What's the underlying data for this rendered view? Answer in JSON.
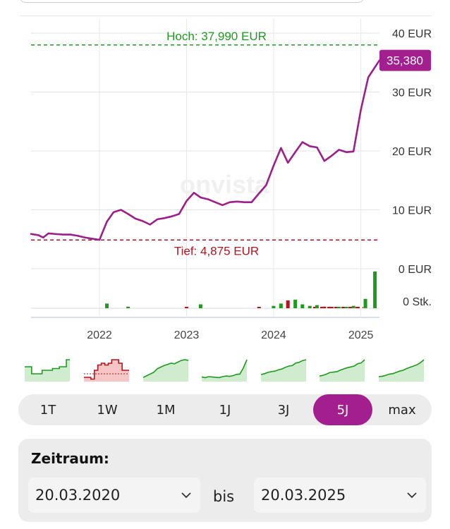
{
  "chart_data": {
    "type": "line",
    "currency": "EUR",
    "y_ticks": [
      "40 EUR",
      "30 EUR",
      "20 EUR",
      "10 EUR",
      "0 EUR"
    ],
    "ylim": [
      0,
      40
    ],
    "x_ticks": [
      "2022",
      "2023",
      "2024",
      "2025"
    ],
    "x_range": [
      "2021-03-20",
      "2025-03-20"
    ],
    "high": {
      "label": "Hoch: 37,990 EUR",
      "value": 37.99
    },
    "low": {
      "label": "Tief: 4,875 EUR",
      "value": 4.875
    },
    "last_value_label": "35,380",
    "series": [
      {
        "name": "",
        "color": "#9c1f8a",
        "points": [
          [
            "2021-03-20",
            5.9
          ],
          [
            "2021-04-20",
            5.7
          ],
          [
            "2021-05-10",
            5.3
          ],
          [
            "2021-06-01",
            6.0
          ],
          [
            "2021-07-01",
            5.9
          ],
          [
            "2021-08-01",
            5.8
          ],
          [
            "2021-09-01",
            5.8
          ],
          [
            "2021-10-01",
            5.6
          ],
          [
            "2021-11-01",
            5.3
          ],
          [
            "2021-12-01",
            5.1
          ],
          [
            "2022-01-01",
            4.9
          ],
          [
            "2022-02-01",
            8.0
          ],
          [
            "2022-03-01",
            9.6
          ],
          [
            "2022-04-01",
            10.0
          ],
          [
            "2022-05-01",
            9.3
          ],
          [
            "2022-06-01",
            8.5
          ],
          [
            "2022-07-01",
            8.1
          ],
          [
            "2022-08-01",
            7.5
          ],
          [
            "2022-09-01",
            8.4
          ],
          [
            "2022-10-01",
            8.6
          ],
          [
            "2022-11-01",
            8.9
          ],
          [
            "2022-12-01",
            9.3
          ],
          [
            "2023-01-01",
            11.5
          ],
          [
            "2023-02-01",
            12.9
          ],
          [
            "2023-03-01",
            12.1
          ],
          [
            "2023-04-01",
            11.8
          ],
          [
            "2023-05-01",
            11.3
          ],
          [
            "2023-06-01",
            10.8
          ],
          [
            "2023-07-01",
            11.3
          ],
          [
            "2023-08-01",
            11.4
          ],
          [
            "2023-09-01",
            11.3
          ],
          [
            "2023-10-01",
            11.3
          ],
          [
            "2023-11-01",
            12.8
          ],
          [
            "2023-12-01",
            14.2
          ],
          [
            "2024-01-01",
            17.5
          ],
          [
            "2024-02-01",
            20.5
          ],
          [
            "2024-03-01",
            18.0
          ],
          [
            "2024-04-01",
            19.8
          ],
          [
            "2024-05-01",
            21.5
          ],
          [
            "2024-06-01",
            20.8
          ],
          [
            "2024-07-01",
            20.6
          ],
          [
            "2024-08-01",
            18.3
          ],
          [
            "2024-09-01",
            19.2
          ],
          [
            "2024-10-01",
            20.2
          ],
          [
            "2024-11-01",
            19.8
          ],
          [
            "2024-12-01",
            19.9
          ],
          [
            "2025-01-01",
            27.0
          ],
          [
            "2025-02-01",
            32.5
          ],
          [
            "2025-03-20",
            35.38
          ]
        ]
      }
    ],
    "volume": {
      "axis_label": "0 Stk.",
      "bars": [
        {
          "date": "2022-02-01",
          "value": 6,
          "direction": "up"
        },
        {
          "date": "2022-05-01",
          "value": 2,
          "direction": "up"
        },
        {
          "date": "2023-01-01",
          "value": 1,
          "direction": "down"
        },
        {
          "date": "2023-03-01",
          "value": 5,
          "direction": "up"
        },
        {
          "date": "2023-11-01",
          "value": 1,
          "direction": "down"
        },
        {
          "date": "2024-01-01",
          "value": 3,
          "direction": "up"
        },
        {
          "date": "2024-02-01",
          "value": 6,
          "direction": "up"
        },
        {
          "date": "2024-03-01",
          "value": 10,
          "direction": "down"
        },
        {
          "date": "2024-04-01",
          "value": 11,
          "direction": "up"
        },
        {
          "date": "2024-05-01",
          "value": 5,
          "direction": "up"
        },
        {
          "date": "2024-06-01",
          "value": 3,
          "direction": "up"
        },
        {
          "date": "2024-07-01",
          "value": 4,
          "direction": "up"
        },
        {
          "date": "2024-08-01",
          "value": 2,
          "direction": "down"
        },
        {
          "date": "2024-09-01",
          "value": 1,
          "direction": "down"
        },
        {
          "date": "2024-10-01",
          "value": 1,
          "direction": "up"
        },
        {
          "date": "2024-11-01",
          "value": 1,
          "direction": "up"
        },
        {
          "date": "2024-12-01",
          "value": 3,
          "direction": "up"
        },
        {
          "date": "2025-01-20",
          "value": 12,
          "direction": "up"
        },
        {
          "date": "2025-03-01",
          "value": 47,
          "direction": "up"
        }
      ],
      "up_color": "#1f9a1f",
      "down_color": "#b3141e"
    }
  },
  "colors": {
    "accent": "#a31e8e",
    "high": "#1f9a1f",
    "low": "#b3141e"
  },
  "thumbnails": [
    {
      "period": "1T",
      "trend": "up",
      "values": [
        4,
        4,
        2,
        2,
        2,
        3,
        3,
        3,
        3.5,
        3.5,
        4,
        4,
        6,
        6
      ]
    },
    {
      "period": "1W",
      "trend": "down",
      "values": [
        1,
        1,
        0.5,
        3,
        4.5,
        5,
        4.5,
        5,
        6,
        6,
        5,
        3,
        3,
        3
      ]
    },
    {
      "period": "1M",
      "trend": "up",
      "values": [
        1,
        1.5,
        2,
        2.5,
        3.5,
        4,
        4.5,
        4.8,
        5.2,
        5,
        5.5,
        6,
        6.2,
        6
      ]
    },
    {
      "period": "1J",
      "trend": "up",
      "values": [
        1.2,
        1,
        1.3,
        1.2,
        1.1,
        1,
        1.3,
        1.5,
        1.4,
        1.6,
        2,
        2.1,
        4,
        6.5
      ]
    },
    {
      "period": "3J",
      "trend": "up",
      "values": [
        1.5,
        1.7,
        2,
        2.2,
        2.3,
        2.6,
        2.8,
        3.2,
        3.5,
        3.6,
        4.2,
        4.4,
        4.8,
        5
      ]
    },
    {
      "period": "5J",
      "trend": "up",
      "values": [
        1.2,
        1.4,
        1.7,
        2.1,
        2.2,
        2.3,
        2.7,
        3,
        3.3,
        3.5,
        3.7,
        4.3,
        4.5,
        5.3
      ]
    },
    {
      "period": "max",
      "trend": "up",
      "values": [
        1,
        1.1,
        1.3,
        1.6,
        1.7,
        2,
        2.3,
        2.5,
        2.9,
        3.2,
        3.5,
        3.8,
        4.3,
        5
      ]
    }
  ],
  "periods": {
    "labels": [
      "1T",
      "1W",
      "1M",
      "1J",
      "3J",
      "5J",
      "max"
    ],
    "selected": "5J"
  },
  "range": {
    "title": "Zeitraum:",
    "from": "20.03.2020",
    "separator": "bis",
    "to": "20.03.2025"
  }
}
